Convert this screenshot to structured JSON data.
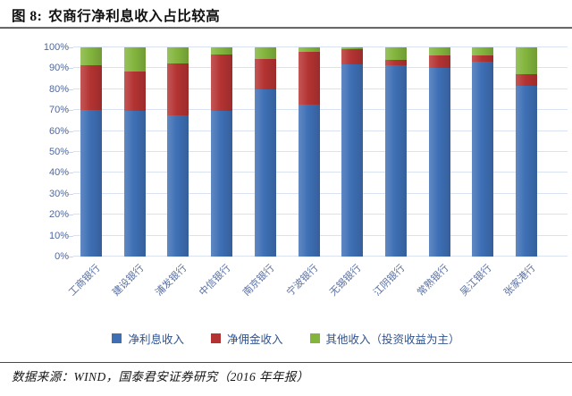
{
  "figure": {
    "label": "图 8:",
    "title": "农商行净利息收入占比较高",
    "source": "数据来源：WIND，国泰君安证券研究（2016 年年报）"
  },
  "chart_data": {
    "type": "bar",
    "stacked": true,
    "title": "农商行净利息收入占比较高",
    "categories": [
      "工商银行",
      "建设银行",
      "浦发银行",
      "中信银行",
      "南京银行",
      "宁波银行",
      "无锡银行",
      "江阴银行",
      "常熟银行",
      "吴江银行",
      "张家港行"
    ],
    "series": [
      {
        "name": "净利息收入",
        "color": "#3e6fb5",
        "values": [
          70,
          69.5,
          67.5,
          69.5,
          80,
          72.5,
          92,
          91.5,
          90,
          93,
          81.5
        ]
      },
      {
        "name": "净佣金收入",
        "color": "#b43332",
        "values": [
          21.5,
          19,
          25,
          27,
          14.5,
          25.5,
          7,
          2.5,
          6,
          3,
          5.5
        ]
      },
      {
        "name": "其他收入（投资收益为主）",
        "color": "#83b53d",
        "values": [
          8.5,
          11.5,
          7.5,
          3.5,
          5.5,
          2,
          1,
          6,
          4,
          4,
          13
        ]
      }
    ],
    "xlabel": "",
    "ylabel": "",
    "ylim": [
      0,
      100
    ],
    "yticks": [
      "0%",
      "10%",
      "20%",
      "30%",
      "40%",
      "50%",
      "60%",
      "70%",
      "80%",
      "90%",
      "100%"
    ],
    "grid": true,
    "legend_position": "bottom",
    "colors": {
      "gridline": "#d9e2f2",
      "axis_text": "#4f689c",
      "legend_text": "#2f5491"
    }
  }
}
